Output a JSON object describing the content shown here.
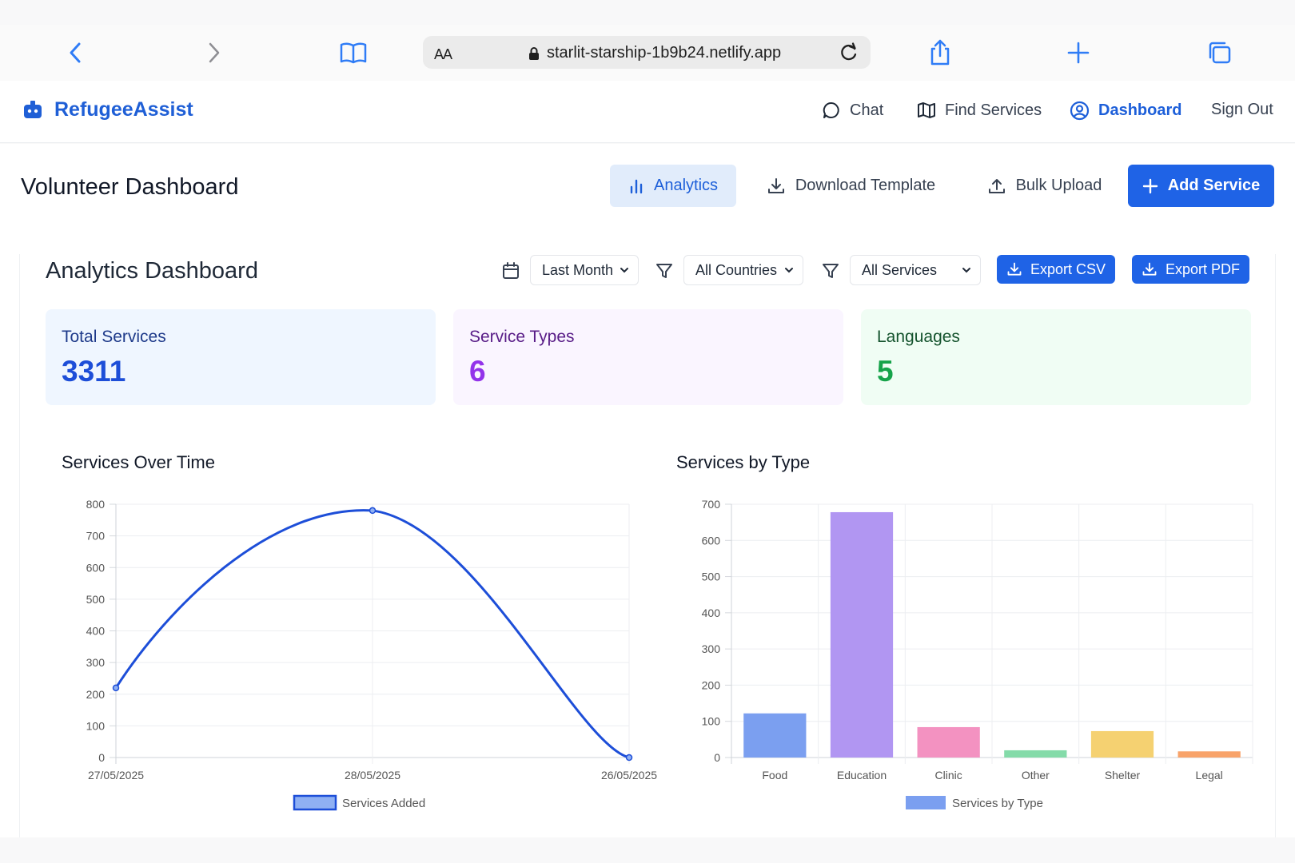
{
  "browser": {
    "url": "starlit-starship-1b9b24.netlify.app",
    "aa_label": "AA",
    "icons": [
      "back-icon",
      "forward-icon",
      "bookmarks-icon",
      "lock-icon",
      "reload-icon",
      "share-icon",
      "new-tab-icon",
      "tabs-icon"
    ]
  },
  "nav": {
    "brand": "RefugeeAssist",
    "chat": "Chat",
    "find_services": "Find Services",
    "dashboard": "Dashboard",
    "sign_out": "Sign Out"
  },
  "page": {
    "title": "Volunteer Dashboard",
    "buttons": {
      "analytics": "Analytics",
      "download_template": "Download Template",
      "bulk_upload": "Bulk Upload",
      "add_service": "Add Service"
    }
  },
  "analytics": {
    "title": "Analytics Dashboard",
    "filters": {
      "period": "Last Month",
      "country": "All Countries",
      "service": "All Services"
    },
    "export_csv": "Export CSV",
    "export_pdf": "Export PDF",
    "stats": [
      {
        "label": "Total Services",
        "value": "3311",
        "color": "#1d4ed8",
        "bg": "#eff6ff",
        "label_color": "#1e3a8a"
      },
      {
        "label": "Service Types",
        "value": "6",
        "color": "#9333ea",
        "bg": "#faf5ff",
        "label_color": "#581c87"
      },
      {
        "label": "Languages",
        "value": "5",
        "color": "#16a34a",
        "bg": "#f0fdf4",
        "label_color": "#14532d"
      }
    ]
  },
  "colors": {
    "primary": "#1f63e6",
    "brand": "#1f5fd6"
  },
  "chart_data": [
    {
      "type": "line",
      "title": "Services Over Time",
      "x": [
        "27/05/2025",
        "28/05/2025",
        "26/05/2025"
      ],
      "series": [
        {
          "name": "Services Added",
          "values": [
            220,
            780,
            0
          ],
          "color": "#1d4ed8"
        }
      ],
      "ylim": [
        0,
        800
      ],
      "yticks": [
        0,
        100,
        200,
        300,
        400,
        500,
        600,
        700,
        800
      ],
      "grid": true,
      "legend": "bottom"
    },
    {
      "type": "bar",
      "title": "Services by Type",
      "categories": [
        "Food",
        "Education",
        "Clinic",
        "Other",
        "Shelter",
        "Legal"
      ],
      "series": [
        {
          "name": "Services by Type",
          "values": [
            122,
            678,
            84,
            20,
            73,
            17
          ]
        }
      ],
      "colors": [
        "#7b9ff0",
        "#b196f2",
        "#f392c1",
        "#84dba9",
        "#f5d171",
        "#f8a36a"
      ],
      "ylim": [
        0,
        700
      ],
      "yticks": [
        0,
        100,
        200,
        300,
        400,
        500,
        600,
        700
      ],
      "grid": true,
      "legend": "bottom"
    }
  ]
}
